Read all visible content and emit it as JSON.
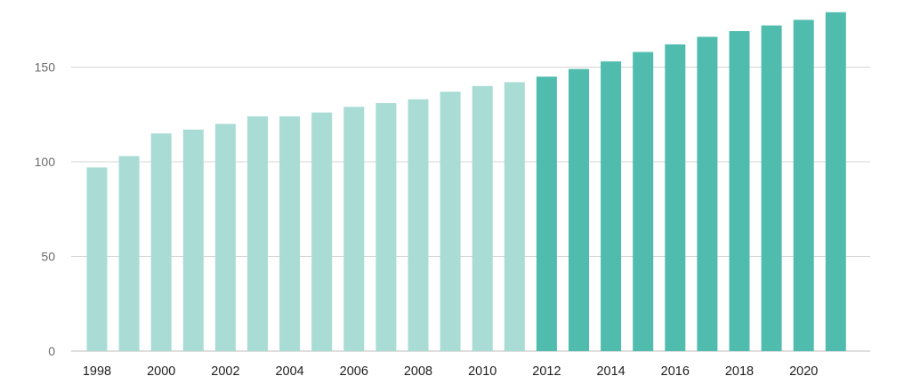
{
  "chart_data": {
    "type": "bar",
    "title": "",
    "xlabel": "",
    "ylabel": "",
    "categories": [
      "1998",
      "1999",
      "2000",
      "2001",
      "2002",
      "2003",
      "2004",
      "2005",
      "2006",
      "2007",
      "2008",
      "2009",
      "2010",
      "2011",
      "2012",
      "2013",
      "2014",
      "2015",
      "2016",
      "2017",
      "2018",
      "2019",
      "2020",
      "2021"
    ],
    "values": [
      97,
      103,
      115,
      117,
      120,
      124,
      124,
      126,
      129,
      131,
      133,
      137,
      140,
      142,
      145,
      149,
      153,
      158,
      162,
      166,
      169,
      172,
      175,
      179
    ],
    "highlight_start_index": 14,
    "colors": {
      "light_bar": "#a8dcd5",
      "dark_bar": "#50bcae",
      "grid": "#d4d4d4"
    },
    "ylim": [
      0,
      180
    ],
    "yticks": [
      0,
      50,
      100,
      150
    ],
    "xtick_labels": [
      "1998",
      "2000",
      "2002",
      "2004",
      "2006",
      "2008",
      "2010",
      "2012",
      "2014",
      "2016",
      "2018",
      "2020"
    ],
    "grid": true,
    "legend": "none"
  }
}
